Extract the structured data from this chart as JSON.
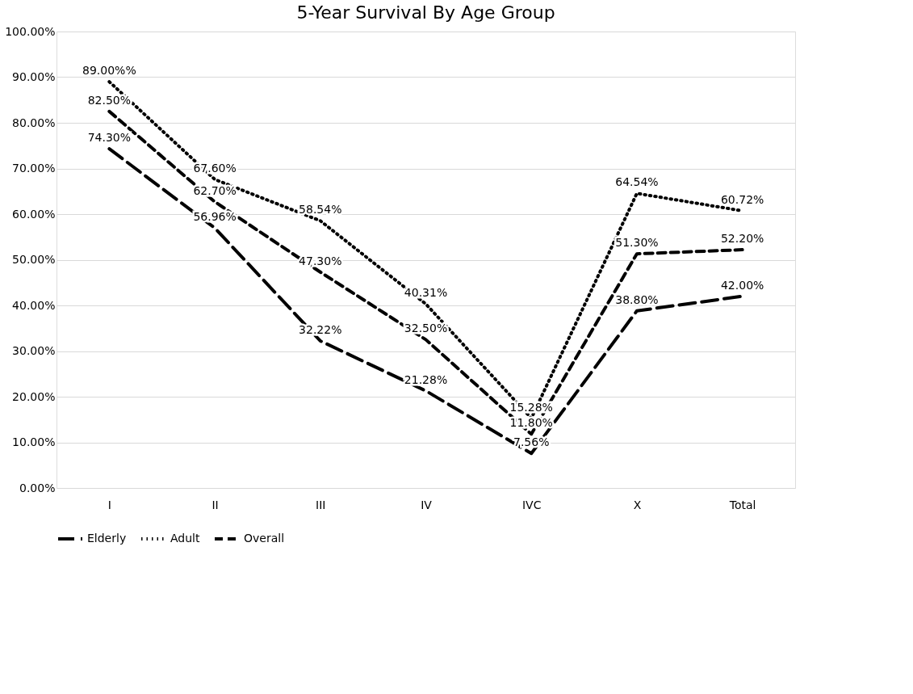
{
  "chart_data": {
    "type": "line",
    "title": "5-Year Survival By Age Group",
    "categories": [
      "I",
      "II",
      "III",
      "IV",
      "IVC",
      "X",
      "Total"
    ],
    "series": [
      {
        "name": "Elderly",
        "color": "#000000",
        "line_style": "longdash",
        "values": [
          74.3,
          56.96,
          32.22,
          21.28,
          7.56,
          38.8,
          42.0
        ],
        "value_labels": [
          "74.30%",
          "56.96%",
          "32.22%",
          "21.28%",
          "7.56%",
          "38.80%",
          "42.00%"
        ]
      },
      {
        "name": "Adult",
        "color": "#000000",
        "line_style": "dotted",
        "values": [
          89.0,
          67.6,
          58.54,
          40.31,
          15.28,
          64.54,
          60.72
        ],
        "value_labels": [
          "89.00%%",
          "67.60%",
          "58.54%",
          "40.31%",
          "15.28%",
          "64.54%",
          "60.72%"
        ]
      },
      {
        "name": "Overall",
        "color": "#000000",
        "line_style": "dashed",
        "values": [
          82.5,
          62.7,
          47.3,
          32.5,
          11.8,
          51.3,
          52.2
        ],
        "value_labels": [
          "82.50%",
          "62.70%",
          "47.30%",
          "32.50%",
          "11.80%",
          "51.30%",
          "52.20%"
        ]
      }
    ],
    "ylim": [
      0,
      100
    ],
    "yticks": [
      {
        "value": 0,
        "label": "0.00%"
      },
      {
        "value": 10,
        "label": "10.00%"
      },
      {
        "value": 20,
        "label": "20.00%"
      },
      {
        "value": 30,
        "label": "30.00%"
      },
      {
        "value": 40,
        "label": "40.00%"
      },
      {
        "value": 50,
        "label": "50.00%"
      },
      {
        "value": 60,
        "label": "60.00%"
      },
      {
        "value": 70,
        "label": "70.00%"
      },
      {
        "value": 80,
        "label": "80.00%"
      },
      {
        "value": 90,
        "label": "90.00%"
      },
      {
        "value": 100,
        "label": "100.00%"
      }
    ],
    "grid": "y",
    "legend": "bottom",
    "marker": "none"
  }
}
